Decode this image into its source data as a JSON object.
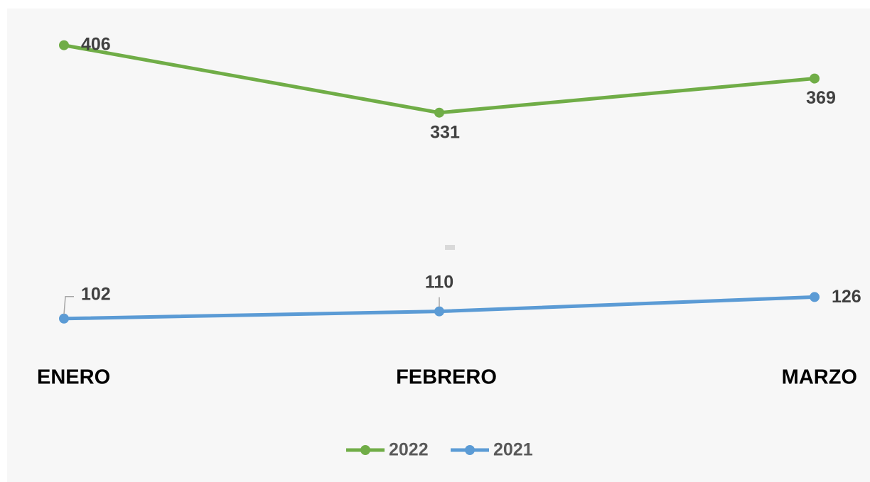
{
  "chart_data": {
    "type": "line",
    "categories": [
      "ENERO",
      "FEBRERO",
      "MARZO"
    ],
    "series": [
      {
        "name": "2022",
        "color": "#70ad47",
        "values": [
          406,
          331,
          369
        ]
      },
      {
        "name": "2021",
        "color": "#5b9bd5",
        "values": [
          102,
          110,
          126
        ]
      }
    ],
    "ylim": [
      0,
      450
    ],
    "legend": "bottom"
  }
}
